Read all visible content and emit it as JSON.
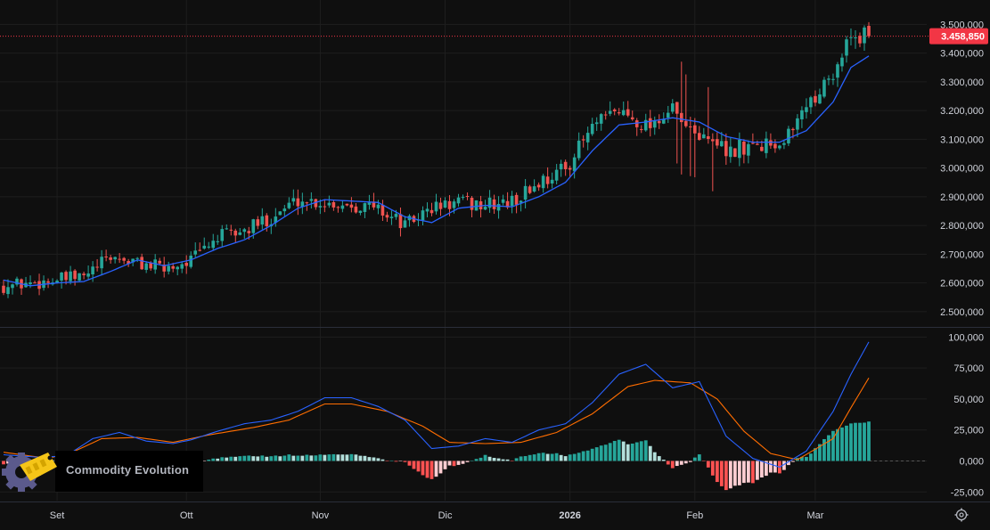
{
  "brand": {
    "name": "Commodity Evolution"
  },
  "last_price": {
    "value": 3458850,
    "label": "3.458,850",
    "color": "#f23645"
  },
  "colors": {
    "up": "#26a69a",
    "down": "#ef5350",
    "ma": "#2962ff",
    "macd": "#2962ff",
    "signal": "#ff6d00",
    "hist_up_strong": "#26a69a",
    "hist_up_weak": "#b2dfdb",
    "hist_down_strong": "#ff5252",
    "hist_down_weak": "#ffcdd2",
    "background": "#0f0f0f",
    "grid": "#1e1e1e"
  },
  "chart_data": [
    {
      "type": "candlestick",
      "title": "",
      "y_ticks": [
        "2.500,000",
        "2.600,000",
        "2.700,000",
        "2.800,000",
        "2.900,000",
        "3.000,000",
        "3.100,000",
        "3.200,000",
        "3.300,000",
        "3.400,000",
        "3.500,000"
      ],
      "y_tick_values": [
        2500000,
        2600000,
        2700000,
        2800000,
        2900000,
        3000000,
        3100000,
        3200000,
        3300000,
        3400000,
        3500000
      ],
      "ylim": [
        2450000,
        3560000
      ],
      "x_ticks": [
        {
          "label": "Set",
          "index": 12,
          "bold": false
        },
        {
          "label": "Ott",
          "index": 41,
          "bold": false
        },
        {
          "label": "Nov",
          "index": 71,
          "bold": false
        },
        {
          "label": "Dic",
          "index": 99,
          "bold": false
        },
        {
          "label": "2026",
          "index": 127,
          "bold": true
        },
        {
          "label": "Feb",
          "index": 155,
          "bold": false
        },
        {
          "label": "Mar",
          "index": 182,
          "bold": false
        }
      ],
      "moving_average_anchors": [
        [
          0,
          2610000
        ],
        [
          6,
          2590000
        ],
        [
          12,
          2600000
        ],
        [
          18,
          2605000
        ],
        [
          24,
          2640000
        ],
        [
          30,
          2680000
        ],
        [
          36,
          2660000
        ],
        [
          42,
          2680000
        ],
        [
          48,
          2720000
        ],
        [
          54,
          2750000
        ],
        [
          60,
          2800000
        ],
        [
          66,
          2860000
        ],
        [
          72,
          2890000
        ],
        [
          78,
          2885000
        ],
        [
          84,
          2880000
        ],
        [
          90,
          2830000
        ],
        [
          96,
          2810000
        ],
        [
          102,
          2860000
        ],
        [
          108,
          2870000
        ],
        [
          114,
          2865000
        ],
        [
          120,
          2900000
        ],
        [
          126,
          2950000
        ],
        [
          132,
          3060000
        ],
        [
          138,
          3150000
        ],
        [
          144,
          3160000
        ],
        [
          150,
          3175000
        ],
        [
          156,
          3160000
        ],
        [
          162,
          3110000
        ],
        [
          168,
          3090000
        ],
        [
          174,
          3090000
        ],
        [
          180,
          3130000
        ],
        [
          186,
          3230000
        ],
        [
          190,
          3350000
        ],
        [
          194,
          3390000
        ]
      ],
      "trend_anchors": [
        [
          0,
          2590000
        ],
        [
          6,
          2600000
        ],
        [
          12,
          2610000
        ],
        [
          18,
          2620000
        ],
        [
          24,
          2690000
        ],
        [
          30,
          2670000
        ],
        [
          36,
          2650000
        ],
        [
          42,
          2680000
        ],
        [
          48,
          2760000
        ],
        [
          54,
          2780000
        ],
        [
          60,
          2830000
        ],
        [
          66,
          2890000
        ],
        [
          72,
          2880000
        ],
        [
          78,
          2875000
        ],
        [
          84,
          2860000
        ],
        [
          90,
          2800000
        ],
        [
          96,
          2860000
        ],
        [
          102,
          2880000
        ],
        [
          108,
          2870000
        ],
        [
          114,
          2880000
        ],
        [
          120,
          2950000
        ],
        [
          126,
          3000000
        ],
        [
          132,
          3140000
        ],
        [
          138,
          3200000
        ],
        [
          144,
          3150000
        ],
        [
          150,
          3200000
        ],
        [
          156,
          3100000
        ],
        [
          162,
          3060000
        ],
        [
          168,
          3080000
        ],
        [
          174,
          3090000
        ],
        [
          180,
          3220000
        ],
        [
          186,
          3330000
        ],
        [
          190,
          3460000
        ],
        [
          194,
          3458850
        ]
      ]
    },
    {
      "type": "macd",
      "title": "",
      "y_ticks": [
        "100,000",
        "75,000",
        "50,000",
        "25,000",
        "0,000",
        "-25,000"
      ],
      "y_tick_values": [
        100000,
        75000,
        50000,
        25000,
        0,
        -25000
      ],
      "ylim": [
        -32000,
        106000
      ],
      "macd_anchors": [
        [
          0,
          5000
        ],
        [
          8,
          3000
        ],
        [
          14,
          4000
        ],
        [
          20,
          18000
        ],
        [
          26,
          23000
        ],
        [
          32,
          16000
        ],
        [
          38,
          14000
        ],
        [
          42,
          17000
        ],
        [
          48,
          24000
        ],
        [
          54,
          30000
        ],
        [
          60,
          33000
        ],
        [
          66,
          40000
        ],
        [
          72,
          51000
        ],
        [
          78,
          51000
        ],
        [
          84,
          44000
        ],
        [
          90,
          33000
        ],
        [
          96,
          10000
        ],
        [
          102,
          12000
        ],
        [
          108,
          18000
        ],
        [
          114,
          15000
        ],
        [
          120,
          25000
        ],
        [
          126,
          30000
        ],
        [
          132,
          47000
        ],
        [
          138,
          70000
        ],
        [
          144,
          78000
        ],
        [
          150,
          59000
        ],
        [
          156,
          64000
        ],
        [
          162,
          20000
        ],
        [
          168,
          2000
        ],
        [
          174,
          -5000
        ],
        [
          180,
          8000
        ],
        [
          186,
          40000
        ],
        [
          190,
          70000
        ],
        [
          194,
          96000
        ]
      ],
      "signal_anchors": [
        [
          0,
          7000
        ],
        [
          10,
          2000
        ],
        [
          16,
          8000
        ],
        [
          22,
          18000
        ],
        [
          30,
          19000
        ],
        [
          38,
          15000
        ],
        [
          46,
          21000
        ],
        [
          56,
          27000
        ],
        [
          64,
          33000
        ],
        [
          72,
          46000
        ],
        [
          78,
          46000
        ],
        [
          86,
          40000
        ],
        [
          94,
          28000
        ],
        [
          100,
          15000
        ],
        [
          108,
          14000
        ],
        [
          116,
          15000
        ],
        [
          124,
          23000
        ],
        [
          132,
          38000
        ],
        [
          140,
          60000
        ],
        [
          146,
          65000
        ],
        [
          154,
          63000
        ],
        [
          160,
          50000
        ],
        [
          166,
          24000
        ],
        [
          172,
          6000
        ],
        [
          178,
          1000
        ],
        [
          186,
          18000
        ],
        [
          190,
          43000
        ],
        [
          194,
          67000
        ]
      ]
    }
  ]
}
